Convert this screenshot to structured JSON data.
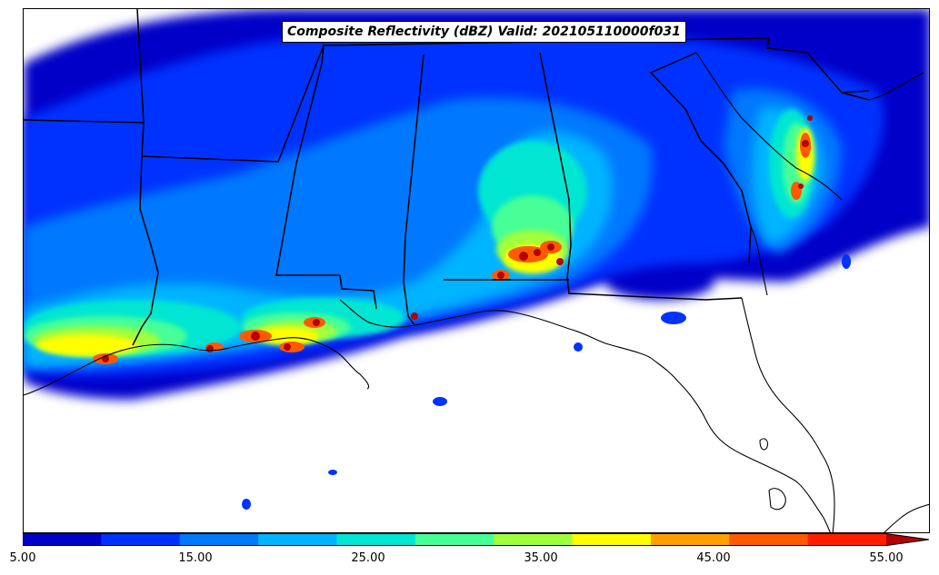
{
  "map": {
    "title": "Composite Reflectivity (dBZ) Valid: 202105110000f031",
    "variable": "Composite Reflectivity",
    "units": "dBZ"
  },
  "colorbar": {
    "min": 5,
    "max": 55,
    "step": 5,
    "extend": "max",
    "colors": [
      "#0000c8",
      "#0032ff",
      "#0078ff",
      "#00b4ff",
      "#00e6d2",
      "#46ff96",
      "#a0ff3c",
      "#ffff00",
      "#ffa000",
      "#ff5a00",
      "#ff1e00",
      "#b40000"
    ],
    "tick_labels": [
      "5.00",
      "15.00",
      "25.00",
      "35.00",
      "45.00",
      "55.00"
    ]
  },
  "colors": {
    "boundary": "#000000",
    "background": "#ffffff"
  }
}
